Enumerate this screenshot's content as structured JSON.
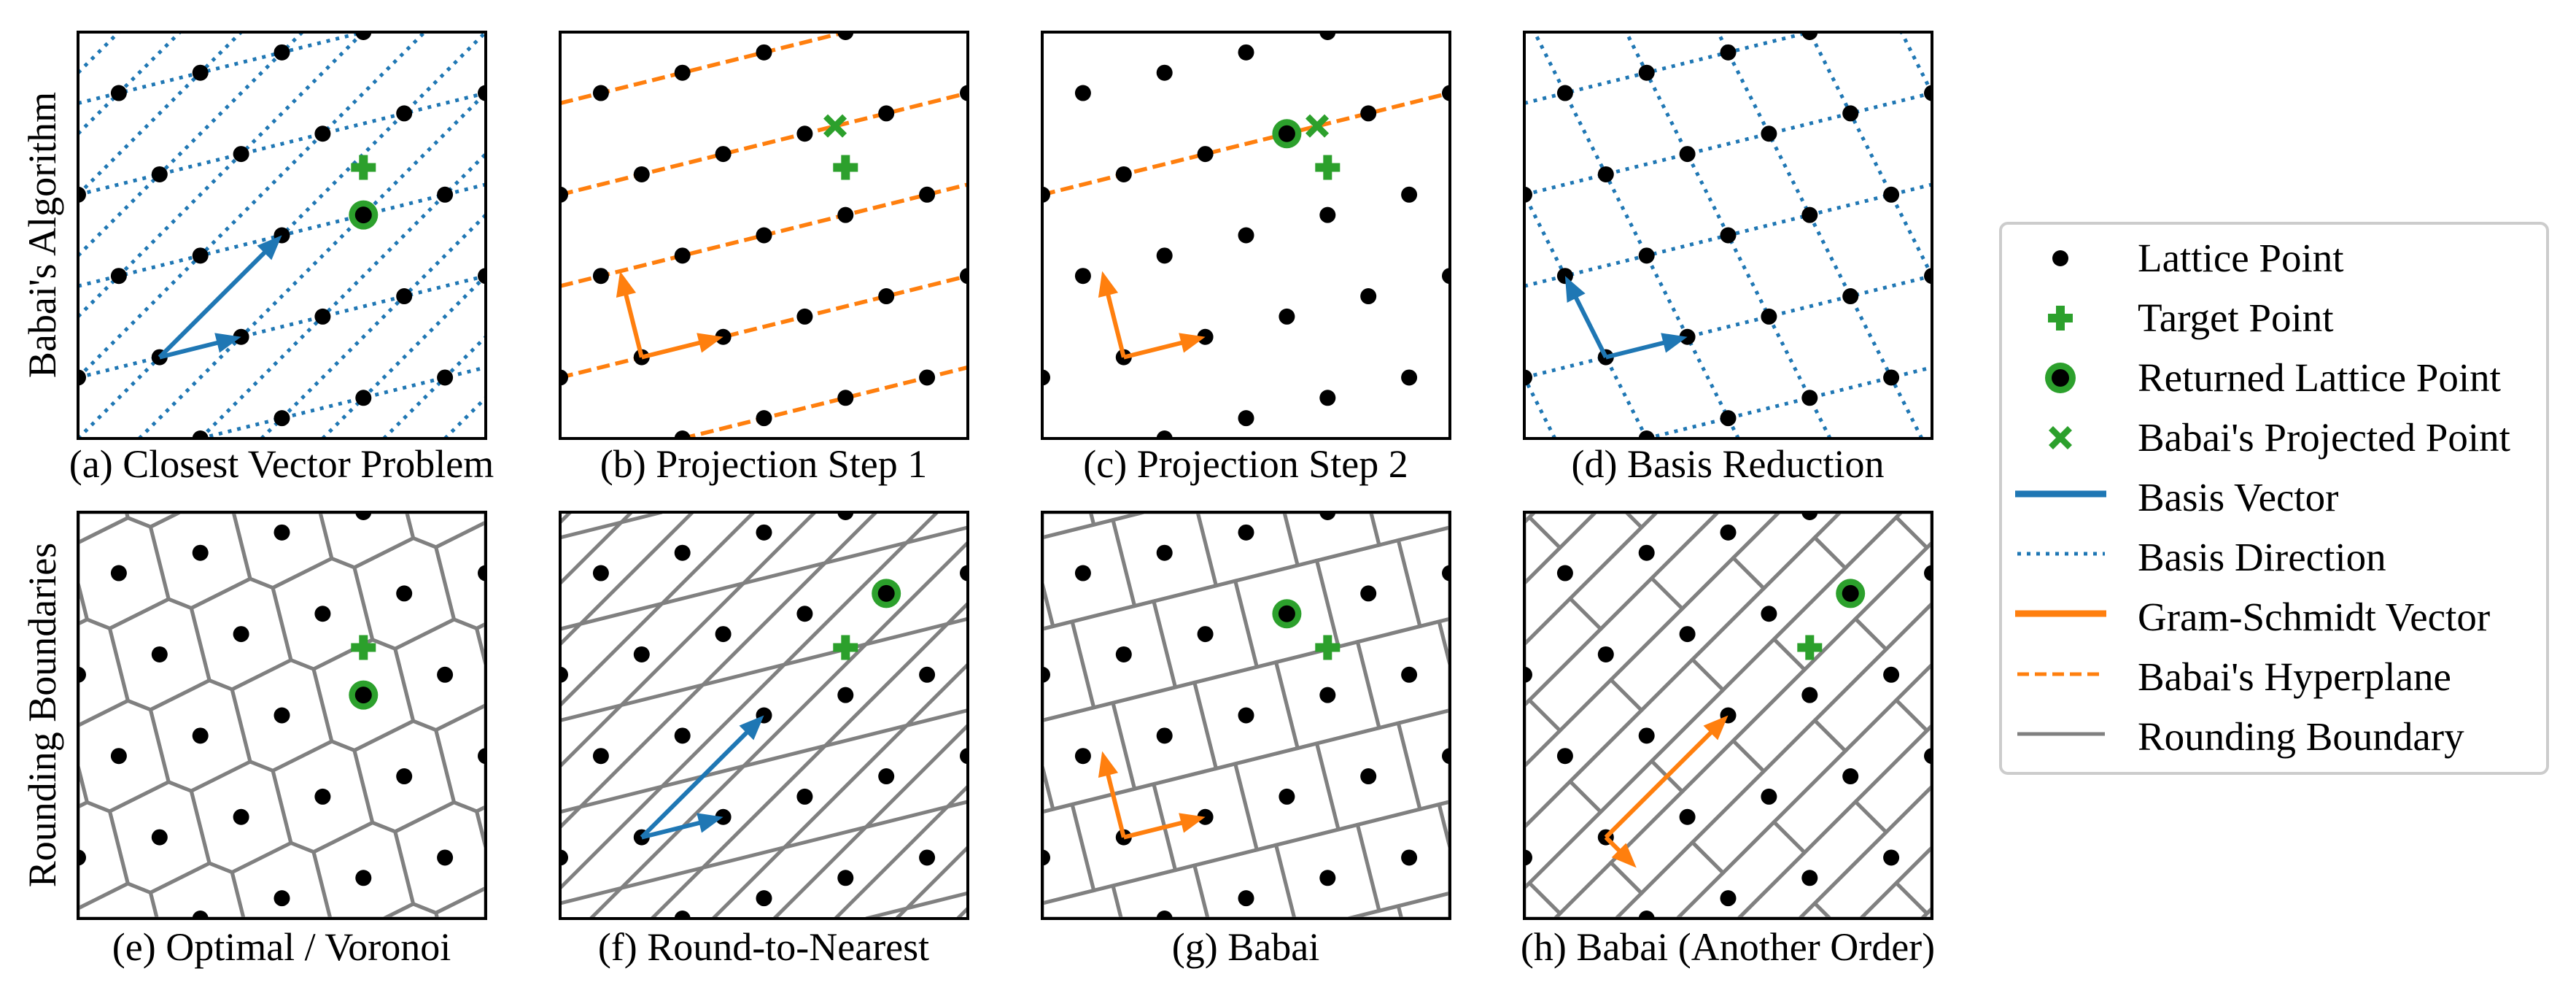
{
  "row_labels": [
    "Babai's Algorithm",
    "Rounding Boundaries"
  ],
  "panels": [
    {
      "caption": "(a) Closest Vector Problem",
      "kind": "basis-directions",
      "returned_point": [
        7,
        5.5
      ],
      "show_target": true
    },
    {
      "caption": "(b) Projection Step 1",
      "kind": "babai-hyperplanes",
      "projected_point": [
        6.745,
        7.69
      ],
      "show_target": true
    },
    {
      "caption": "(c) Projection Step 2",
      "kind": "babai-single-hyperplane",
      "returned_point": [
        6,
        7.5
      ],
      "projected_point": [
        6.745,
        7.69
      ],
      "show_target": true
    },
    {
      "caption": "(d) Basis Reduction",
      "kind": "reduced-basis-directions",
      "show_target": false
    },
    {
      "caption": "(e) Optimal / Voronoi",
      "kind": "voronoi",
      "returned_point": [
        7,
        5.5
      ],
      "show_target": true
    },
    {
      "caption": "(f) Round-to-Nearest",
      "kind": "round-to-nearest",
      "returned_point": [
        8,
        8
      ],
      "show_target": true
    },
    {
      "caption": "(g) Babai",
      "kind": "babai-boxes",
      "returned_point": [
        6,
        7.5
      ],
      "show_target": true
    },
    {
      "caption": "(h) Babai (Another Order)",
      "kind": "babai-boxes-other-order",
      "returned_point": [
        8,
        8
      ],
      "show_target": true
    }
  ],
  "lattice": {
    "domain": [
      0,
      10
    ],
    "origin": [
      2,
      2
    ],
    "basis": [
      [
        2,
        0.5
      ],
      [
        3,
        3
      ]
    ],
    "reduced_basis": [
      [
        2,
        0.5
      ],
      [
        -1,
        2
      ]
    ],
    "target": [
      7,
      6.67
    ]
  },
  "legend": {
    "items": [
      {
        "label": "Lattice Point",
        "symbol": "black-dot"
      },
      {
        "label": "Target Point",
        "symbol": "green-plus"
      },
      {
        "label": "Returned Lattice Point",
        "symbol": "green-ringed-dot"
      },
      {
        "label": "Babai's Projected Point",
        "symbol": "green-x"
      },
      {
        "label": "Basis Vector",
        "symbol": "blue-solid-line"
      },
      {
        "label": "Basis Direction",
        "symbol": "blue-dotted-line"
      },
      {
        "label": "Gram-Schmidt Vector",
        "symbol": "orange-solid-line"
      },
      {
        "label": "Babai's Hyperplane",
        "symbol": "orange-dashed-line"
      },
      {
        "label": "Rounding Boundary",
        "symbol": "gray-solid-line"
      }
    ]
  },
  "colors": {
    "basis": "#1f77b4",
    "gram_schmidt": "#ff7f0e",
    "marker": "#2ca02c",
    "boundary": "#808080",
    "lattice_point": "#000000",
    "legend_border": "#cccccc"
  }
}
